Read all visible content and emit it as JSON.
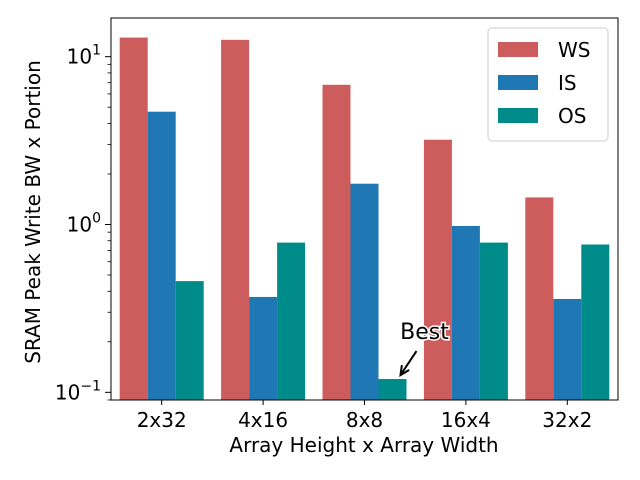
{
  "chart_data": {
    "type": "bar",
    "categories": [
      "2x32",
      "4x16",
      "8x8",
      "16x4",
      "32x2"
    ],
    "series": [
      {
        "name": "WS",
        "color": "#cd5c5c",
        "values": [
          13.0,
          12.6,
          6.8,
          3.2,
          1.45
        ]
      },
      {
        "name": "IS",
        "color": "#1f77b4",
        "values": [
          4.7,
          0.37,
          1.75,
          0.98,
          0.36
        ]
      },
      {
        "name": "OS",
        "color": "#008b8b",
        "values": [
          0.46,
          0.78,
          0.12,
          0.78,
          0.76
        ]
      }
    ],
    "xlabel": "Array Height x Array Width",
    "ylabel": "SRAM Peak Write BW x Portion",
    "yscale": "log",
    "ylim": [
      0.09,
      17
    ],
    "ytick_values": [
      0.1,
      1,
      10
    ],
    "yticks": [
      {
        "base": "10",
        "exp": "−1"
      },
      {
        "base": "10",
        "exp": "0"
      },
      {
        "base": "10",
        "exp": "1"
      }
    ],
    "legend_position": "top-right",
    "grid": false,
    "annotation": {
      "text": "Best",
      "category": "8x8",
      "series": "OS"
    }
  }
}
